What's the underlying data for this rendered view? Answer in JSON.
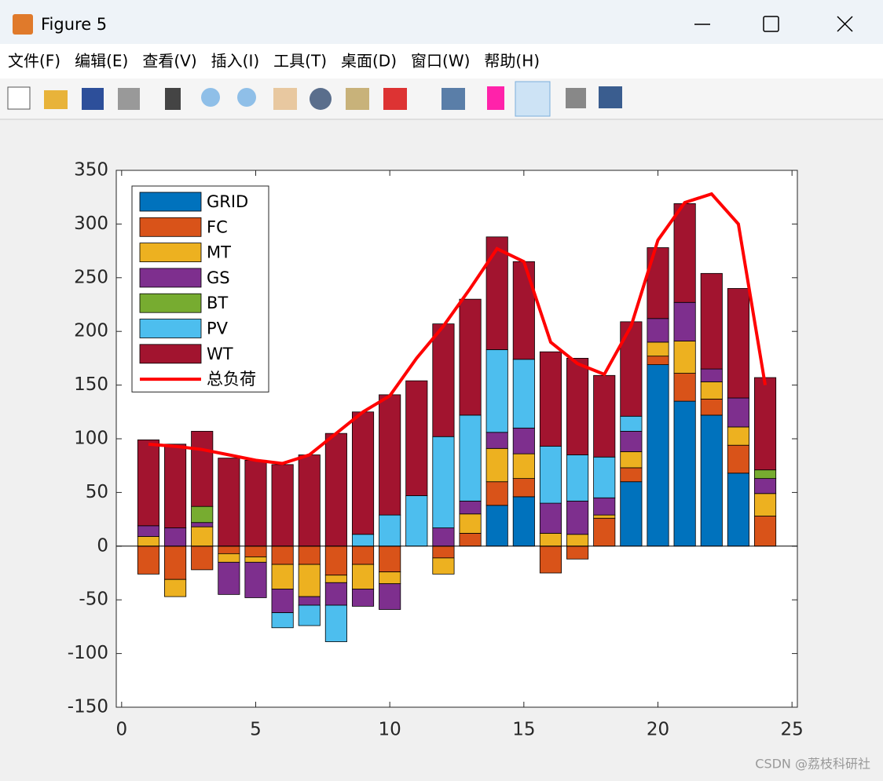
{
  "window": {
    "title": "Figure 5",
    "menu": [
      "文件(F)",
      "编辑(E)",
      "查看(V)",
      "插入(I)",
      "工具(T)",
      "桌面(D)",
      "窗口(W)",
      "帮助(H)"
    ],
    "watermark": "CSDN @荔枝科研社"
  },
  "chart_data": {
    "type": "bar",
    "stacked": true,
    "x": [
      1,
      2,
      3,
      4,
      5,
      6,
      7,
      8,
      9,
      10,
      11,
      12,
      13,
      14,
      15,
      16,
      17,
      18,
      19,
      20,
      21,
      22,
      23,
      24
    ],
    "xlim": [
      -0.2,
      25.2
    ],
    "xticks": [
      0,
      5,
      10,
      15,
      20,
      25
    ],
    "ylim": [
      -150,
      350
    ],
    "yticks": [
      -150,
      -100,
      -50,
      0,
      50,
      100,
      150,
      200,
      250,
      300,
      350
    ],
    "legend": "upper left",
    "series": [
      {
        "name": "GRID",
        "color": "#0072bd",
        "values": [
          0,
          0,
          0,
          0,
          0,
          0,
          0,
          0,
          0,
          0,
          0,
          0,
          0,
          38,
          46,
          0,
          0,
          0,
          60,
          169,
          135,
          122,
          68,
          0
        ]
      },
      {
        "name": "FC",
        "color": "#d95319",
        "values": [
          -26,
          -31,
          -22,
          -7,
          -10,
          -17,
          -17,
          -27,
          -17,
          -24,
          0,
          -11,
          12,
          22,
          17,
          -25,
          -12,
          26,
          13,
          8,
          26,
          15,
          26,
          28
        ]
      },
      {
        "name": "MT",
        "color": "#edb120",
        "values": [
          9,
          -16,
          18,
          -8,
          -5,
          -23,
          -30,
          -7,
          -23,
          -11,
          0,
          -15,
          18,
          31,
          23,
          12,
          11,
          3,
          15,
          13,
          30,
          16,
          17,
          21
        ]
      },
      {
        "name": "GS",
        "color": "#7e2f8e",
        "values": [
          10,
          17,
          4,
          -30,
          -33,
          -22,
          -8,
          -21,
          -16,
          -24,
          0,
          17,
          12,
          15,
          24,
          28,
          31,
          16,
          19,
          22,
          36,
          12,
          27,
          14
        ]
      },
      {
        "name": "BT",
        "color": "#77ac30",
        "values": [
          0,
          0,
          15,
          0,
          0,
          0,
          0,
          0,
          0,
          0,
          0,
          0,
          0,
          0,
          0,
          0,
          0,
          0,
          0,
          0,
          0,
          0,
          0,
          8
        ]
      },
      {
        "name": "PV",
        "color": "#4dbeee",
        "values": [
          0,
          0,
          0,
          0,
          0,
          -14,
          -19,
          -34,
          11,
          29,
          47,
          85,
          80,
          77,
          64,
          53,
          43,
          38,
          14,
          0,
          0,
          0,
          0,
          0
        ]
      },
      {
        "name": "WT",
        "color": "#a2142f",
        "values": [
          80,
          78,
          70,
          82,
          80,
          76,
          85,
          105,
          114,
          112,
          107,
          105,
          108,
          105,
          91,
          88,
          90,
          76,
          88,
          66,
          92,
          89,
          102,
          86
        ]
      }
    ],
    "line": {
      "name": "总负荷",
      "color": "#ff0000",
      "values": [
        95,
        93,
        90,
        85,
        80,
        77,
        85,
        105,
        125,
        140,
        175,
        205,
        240,
        277,
        265,
        190,
        170,
        160,
        205,
        285,
        320,
        328,
        300,
        150
      ]
    }
  }
}
